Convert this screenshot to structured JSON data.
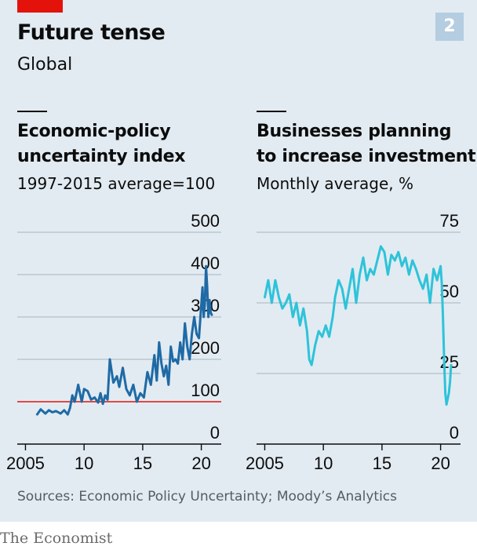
{
  "header": {
    "title": "Future tense",
    "subtitle": "Global",
    "badge": "2"
  },
  "source": "Sources: Economic Policy Uncertainty; Moody’s Analytics",
  "brand": "The Economist",
  "colors": {
    "background": "#e2ebf2",
    "accent_red": "#e3120b",
    "line_dark_blue": "#1f6aa5",
    "line_light_blue": "#2ec3d9",
    "reference_line": "#e3120b",
    "gridline": "#a8b3bc"
  },
  "chart_data": [
    {
      "type": "line",
      "title": "Economic-policy uncertainty index",
      "title_lines": [
        "Economic-policy",
        "uncertainty index"
      ],
      "subtitle": "1997-2015 average=100",
      "xlabel": "",
      "ylabel": "",
      "xlim": [
        2004.3,
        2021.7
      ],
      "ylim": [
        0,
        500
      ],
      "yticks": [
        0,
        100,
        200,
        300,
        400,
        500
      ],
      "xticks": [
        2005,
        2010,
        2015,
        2020
      ],
      "xtick_labels": [
        "2005",
        "10",
        "15",
        "20"
      ],
      "reference_line": 100,
      "grid": true,
      "series": [
        {
          "x": [
            2006.0,
            2006.3,
            2006.7,
            2007.0,
            2007.3,
            2007.6,
            2008.0,
            2008.3,
            2008.6,
            2008.8,
            2009.0,
            2009.2,
            2009.5,
            2009.8,
            2010.0,
            2010.3,
            2010.6,
            2010.9,
            2011.2,
            2011.4,
            2011.6,
            2011.8,
            2012.0,
            2012.2,
            2012.5,
            2012.8,
            2013.0,
            2013.3,
            2013.6,
            2013.9,
            2014.2,
            2014.5,
            2014.8,
            2015.1,
            2015.4,
            2015.7,
            2016.0,
            2016.2,
            2016.4,
            2016.6,
            2016.8,
            2017.0,
            2017.2,
            2017.4,
            2017.6,
            2017.8,
            2018.0,
            2018.2,
            2018.4,
            2018.6,
            2018.8,
            2019.0,
            2019.2,
            2019.4,
            2019.6,
            2019.8,
            2020.0,
            2020.1,
            2020.2,
            2020.3,
            2020.4,
            2020.5,
            2020.6,
            2020.7,
            2020.8,
            2020.9
          ],
          "y": [
            70,
            82,
            72,
            80,
            75,
            78,
            72,
            80,
            70,
            85,
            115,
            100,
            140,
            100,
            130,
            125,
            105,
            110,
            98,
            120,
            95,
            115,
            105,
            200,
            145,
            160,
            135,
            180,
            130,
            115,
            140,
            100,
            120,
            110,
            170,
            140,
            210,
            150,
            240,
            190,
            160,
            185,
            140,
            230,
            195,
            200,
            190,
            240,
            200,
            285,
            230,
            200,
            260,
            300,
            260,
            250,
            330,
            370,
            300,
            330,
            420,
            370,
            300,
            340,
            310,
            305
          ]
        }
      ]
    },
    {
      "type": "line",
      "title": "Businesses planning to increase investment",
      "title_lines": [
        "Businesses planning",
        "to increase investment"
      ],
      "subtitle": "Monthly average, %",
      "xlabel": "",
      "ylabel": "",
      "xlim": [
        2004.3,
        2021.7
      ],
      "ylim": [
        0,
        75
      ],
      "yticks": [
        0,
        25,
        50,
        75
      ],
      "xticks": [
        2005,
        2010,
        2015,
        2020
      ],
      "xtick_labels": [
        "2005",
        "10",
        "15",
        "20"
      ],
      "grid": true,
      "series": [
        {
          "x": [
            2005.0,
            2005.3,
            2005.6,
            2005.9,
            2006.2,
            2006.5,
            2006.8,
            2007.1,
            2007.4,
            2007.7,
            2008.0,
            2008.3,
            2008.6,
            2008.8,
            2009.0,
            2009.3,
            2009.6,
            2009.9,
            2010.2,
            2010.5,
            2010.8,
            2011.0,
            2011.3,
            2011.6,
            2011.9,
            2012.2,
            2012.5,
            2012.8,
            2013.1,
            2013.4,
            2013.7,
            2014.0,
            2014.3,
            2014.6,
            2014.9,
            2015.2,
            2015.5,
            2015.8,
            2016.1,
            2016.4,
            2016.7,
            2017.0,
            2017.3,
            2017.6,
            2017.9,
            2018.2,
            2018.5,
            2018.8,
            2019.1,
            2019.4,
            2019.7,
            2020.0,
            2020.1,
            2020.2,
            2020.3,
            2020.4,
            2020.5,
            2020.6,
            2020.7,
            2020.8,
            2020.9
          ],
          "y": [
            52,
            58,
            50,
            58,
            52,
            48,
            50,
            53,
            45,
            50,
            42,
            48,
            40,
            30,
            28,
            35,
            40,
            38,
            42,
            38,
            45,
            52,
            58,
            55,
            48,
            55,
            62,
            50,
            60,
            66,
            58,
            62,
            60,
            65,
            70,
            68,
            60,
            67,
            65,
            68,
            63,
            66,
            60,
            65,
            62,
            58,
            55,
            60,
            50,
            62,
            58,
            63,
            57,
            45,
            30,
            18,
            14,
            16,
            18,
            22,
            28
          ]
        }
      ]
    }
  ]
}
